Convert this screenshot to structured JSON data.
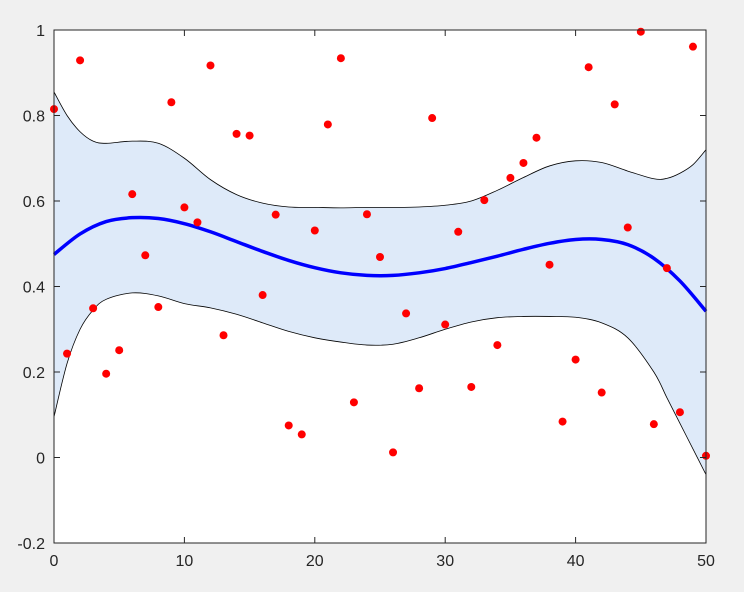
{
  "chart_data": {
    "type": "scatter",
    "title": "",
    "xlabel": "",
    "ylabel": "",
    "xlim": [
      0,
      50
    ],
    "ylim": [
      -0.2,
      1
    ],
    "xticks": [
      0,
      10,
      20,
      30,
      40,
      50
    ],
    "yticks": [
      -0.2,
      0,
      0.2,
      0.4,
      0.6,
      0.8,
      1
    ],
    "xtick_labels": [
      "0",
      "10",
      "20",
      "30",
      "40",
      "50"
    ],
    "ytick_labels": [
      "-0.2",
      "0",
      "0.2",
      "0.4",
      "0.6",
      "0.8",
      "1"
    ],
    "grid": false,
    "colors": {
      "points": "#ff0000",
      "fit_line": "#0000ff",
      "band_fill": "#deeaf9",
      "band_edge": "#000000",
      "axes_bg": "#ffffff",
      "figure_bg": "#f0f0f0"
    },
    "points": {
      "x": [
        0,
        1,
        2,
        3,
        4,
        5,
        6,
        7,
        8,
        9,
        10,
        11,
        12,
        13,
        14,
        15,
        16,
        17,
        18,
        19,
        20,
        21,
        22,
        23,
        24,
        25,
        26,
        27,
        28,
        29,
        30,
        31,
        32,
        33,
        34,
        35,
        36,
        37,
        38,
        39,
        40,
        41,
        42,
        43,
        44,
        45,
        46,
        47,
        48,
        49,
        50
      ],
      "y": [
        0.815,
        0.243,
        0.929,
        0.349,
        0.196,
        0.251,
        0.616,
        0.473,
        0.352,
        0.831,
        0.585,
        0.55,
        0.917,
        0.286,
        0.757,
        0.753,
        0.38,
        0.568,
        0.075,
        0.054,
        0.531,
        0.779,
        0.934,
        0.129,
        0.569,
        0.469,
        0.012,
        0.337,
        0.162,
        0.794,
        0.311,
        0.528,
        0.165,
        0.602,
        0.263,
        0.654,
        0.689,
        0.748,
        0.451,
        0.084,
        0.229,
        0.913,
        0.152,
        0.826,
        0.538,
        0.996,
        0.078,
        0.443,
        0.106,
        0.961,
        0.004
      ]
    },
    "fit": {
      "x": [
        0,
        2,
        4,
        6,
        8,
        10,
        12,
        14,
        16,
        18,
        20,
        22,
        24,
        26,
        28,
        30,
        32,
        34,
        36,
        38,
        40,
        42,
        44,
        46,
        48,
        50
      ],
      "y": [
        0.475,
        0.523,
        0.552,
        0.561,
        0.559,
        0.547,
        0.528,
        0.505,
        0.482,
        0.461,
        0.444,
        0.432,
        0.426,
        0.426,
        0.432,
        0.442,
        0.456,
        0.471,
        0.487,
        0.501,
        0.51,
        0.51,
        0.498,
        0.466,
        0.413,
        0.342
      ]
    },
    "band": {
      "x": [
        0,
        1,
        2,
        3,
        4,
        6,
        8,
        10,
        12,
        14,
        16,
        18,
        20,
        22,
        24,
        26,
        28,
        30,
        32,
        34,
        36,
        38,
        40,
        42,
        44,
        46,
        47,
        48,
        49,
        50
      ],
      "upper": [
        0.855,
        0.8,
        0.762,
        0.74,
        0.735,
        0.74,
        0.735,
        0.7,
        0.65,
        0.615,
        0.595,
        0.586,
        0.585,
        0.584,
        0.585,
        0.585,
        0.586,
        0.59,
        0.6,
        0.625,
        0.655,
        0.682,
        0.694,
        0.69,
        0.67,
        0.652,
        0.653,
        0.665,
        0.685,
        0.72
      ],
      "lower": [
        0.095,
        0.22,
        0.3,
        0.345,
        0.37,
        0.385,
        0.378,
        0.36,
        0.35,
        0.335,
        0.315,
        0.295,
        0.28,
        0.27,
        0.263,
        0.265,
        0.28,
        0.3,
        0.317,
        0.327,
        0.33,
        0.33,
        0.328,
        0.315,
        0.28,
        0.2,
        0.14,
        0.08,
        0.02,
        -0.04
      ]
    }
  }
}
